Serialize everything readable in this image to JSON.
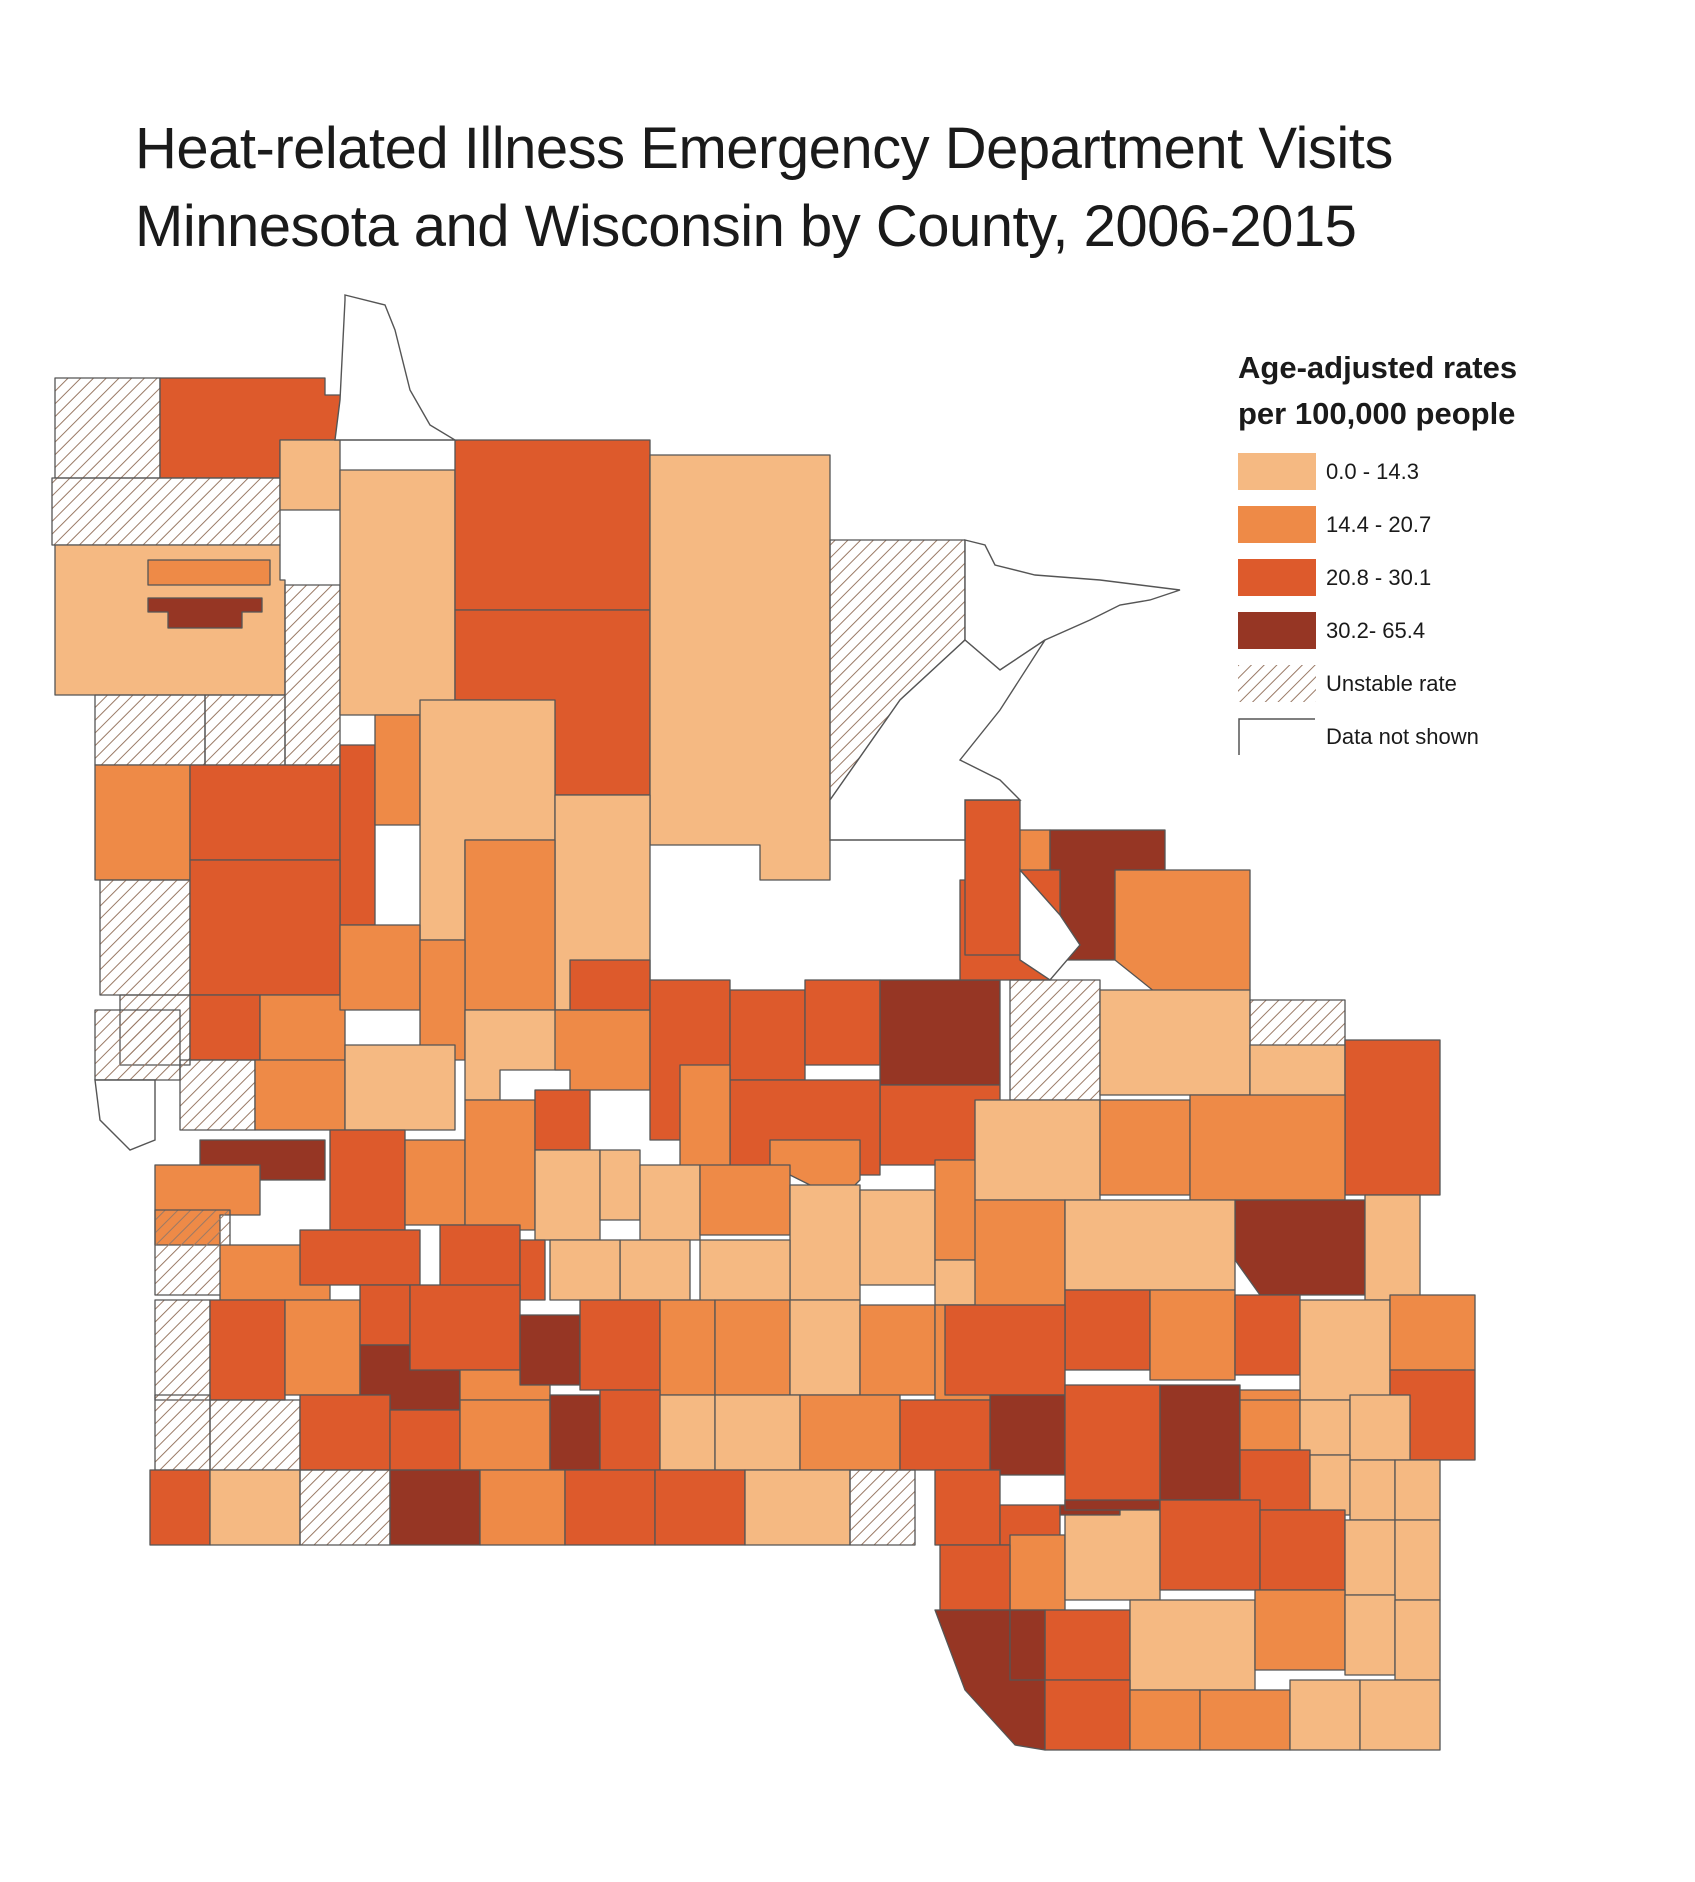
{
  "title": {
    "line1": "Heat-related Illness Emergency Department Visits",
    "line2": "Minnesota and Wisconsin by County, 2006-2015"
  },
  "legend": {
    "title_line1": "Age-adjusted rates",
    "title_line2": "per 100,000 people",
    "items": [
      {
        "key": "c1",
        "label": "0.0 - 14.3",
        "color": "#F5B982"
      },
      {
        "key": "c2",
        "label": "14.4 - 20.7",
        "color": "#EE8A47"
      },
      {
        "key": "c3",
        "label": "20.8 - 30.1",
        "color": "#DD5A2C"
      },
      {
        "key": "c4",
        "label": "30.2- 65.4",
        "color": "#963624"
      },
      {
        "key": "unstable",
        "label": "Unstable rate",
        "pattern": "hatch"
      },
      {
        "key": "na",
        "label": "Data not shown",
        "color": "#ffffff"
      }
    ]
  },
  "colors": {
    "c1": "#F5B982",
    "c2": "#EE8A47",
    "c3": "#DD5A2C",
    "c4": "#963624",
    "border": "#555555",
    "hatch": "#9a7a66"
  }
}
